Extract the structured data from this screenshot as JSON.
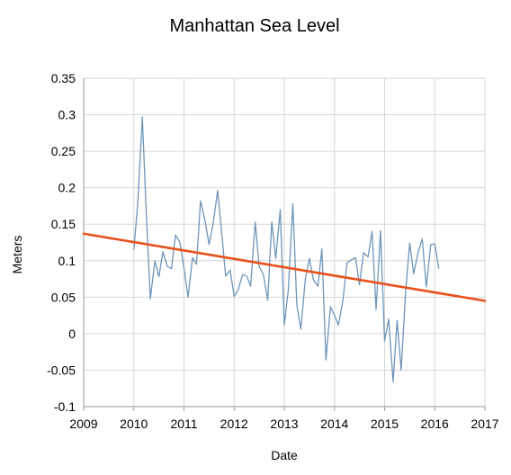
{
  "chart_data": {
    "type": "line",
    "title": "Manhattan Sea Level",
    "xlabel": "Date",
    "ylabel": "Meters",
    "xlim": [
      2009,
      2017
    ],
    "ylim": [
      -0.1,
      0.35
    ],
    "x_ticks": [
      "2009",
      "2010",
      "2011",
      "2012",
      "2013",
      "2014",
      "2015",
      "2016",
      "2017"
    ],
    "y_ticks": [
      "0.35",
      "0.3",
      "0.25",
      "0.2",
      "0.15",
      "0.1",
      "0.05",
      "0",
      "-0.05",
      "-0.1"
    ],
    "grid": true,
    "legend": "none",
    "colors": {
      "series": "#6f95b8",
      "trend": "#e8521e",
      "grid": "#d6d6d6",
      "axis": "#9a9a9a"
    },
    "series": [
      {
        "x": [
          2010.0,
          2010.08,
          2010.17,
          2010.25,
          2010.33,
          2010.42,
          2010.5,
          2010.58,
          2010.67,
          2010.75,
          2010.83,
          2010.92,
          2011.0,
          2011.08,
          2011.17,
          2011.25,
          2011.33,
          2011.42,
          2011.5,
          2011.58,
          2011.67,
          2011.75,
          2011.83,
          2011.92,
          2012.0,
          2012.08,
          2012.17,
          2012.25,
          2012.33,
          2012.42,
          2012.5,
          2012.58,
          2012.67,
          2012.75,
          2012.83,
          2012.92,
          2013.0,
          2013.08,
          2013.17,
          2013.25,
          2013.33,
          2013.42,
          2013.5,
          2013.58,
          2013.67,
          2013.75,
          2013.83,
          2013.92,
          2014.0,
          2014.08,
          2014.17,
          2014.25,
          2014.33,
          2014.42,
          2014.5,
          2014.58,
          2014.67,
          2014.75,
          2014.83,
          2014.92,
          2015.0,
          2015.08,
          2015.17,
          2015.25,
          2015.33,
          2015.42,
          2015.5,
          2015.58,
          2015.67,
          2015.75,
          2015.83,
          2015.92,
          2016.0,
          2016.08
        ],
        "values": [
          0.115,
          0.18,
          0.297,
          0.163,
          0.048,
          0.1,
          0.078,
          0.112,
          0.092,
          0.089,
          0.135,
          0.125,
          0.09,
          0.05,
          0.104,
          0.095,
          0.182,
          0.155,
          0.122,
          0.15,
          0.196,
          0.14,
          0.079,
          0.087,
          0.051,
          0.06,
          0.081,
          0.079,
          0.065,
          0.153,
          0.092,
          0.082,
          0.046,
          0.153,
          0.103,
          0.17,
          0.012,
          0.06,
          0.178,
          0.04,
          0.006,
          0.075,
          0.103,
          0.074,
          0.065,
          0.116,
          -0.036,
          0.037,
          0.025,
          0.012,
          0.046,
          0.097,
          0.101,
          0.104,
          0.067,
          0.111,
          0.105,
          0.14,
          0.033,
          0.141,
          -0.01,
          0.02,
          -0.066,
          0.018,
          -0.05,
          0.058,
          0.124,
          0.082,
          0.112,
          0.13,
          0.064,
          0.122,
          0.123,
          0.089
        ]
      }
    ],
    "trendline": {
      "x": [
        2009,
        2017
      ],
      "values": [
        0.137,
        0.045
      ]
    }
  }
}
